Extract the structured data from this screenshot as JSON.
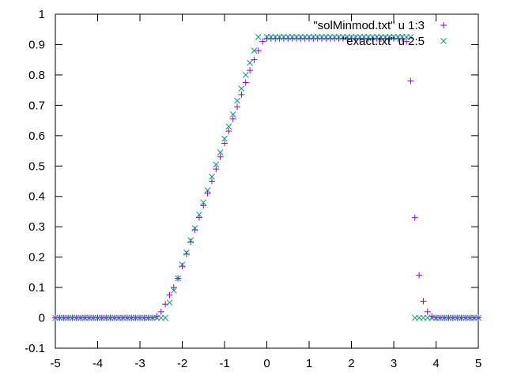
{
  "chart_data": {
    "type": "scatter",
    "xlim": [
      -5,
      5
    ],
    "ylim": [
      -0.1,
      1
    ],
    "xticks": [
      "-5",
      "-4",
      "-3",
      "-2",
      "-1",
      "0",
      "1",
      "2",
      "3",
      "4",
      "5"
    ],
    "yticks": [
      "-0.1",
      "0",
      "0.1",
      "0.2",
      "0.3",
      "0.4",
      "0.5",
      "0.6",
      "0.7",
      "0.8",
      "0.9",
      "1"
    ],
    "grid": false,
    "legend_position": "top-right",
    "series": [
      {
        "name": "\"solMinmod.txt\" u 1:3",
        "marker": "plus",
        "color": "#9400d3",
        "points": [
          [
            -5.0,
            0
          ],
          [
            -4.9,
            0
          ],
          [
            -4.8,
            0
          ],
          [
            -4.7,
            0
          ],
          [
            -4.6,
            0
          ],
          [
            -4.5,
            0
          ],
          [
            -4.4,
            0
          ],
          [
            -4.3,
            0
          ],
          [
            -4.2,
            0
          ],
          [
            -4.1,
            0
          ],
          [
            -4.0,
            0
          ],
          [
            -3.9,
            0
          ],
          [
            -3.8,
            0
          ],
          [
            -3.7,
            0
          ],
          [
            -3.6,
            0
          ],
          [
            -3.5,
            0
          ],
          [
            -3.4,
            0
          ],
          [
            -3.3,
            0
          ],
          [
            -3.2,
            0
          ],
          [
            -3.1,
            0
          ],
          [
            -3.0,
            0
          ],
          [
            -2.9,
            0
          ],
          [
            -2.8,
            0
          ],
          [
            -2.7,
            0
          ],
          [
            -2.6,
            0.005
          ],
          [
            -2.5,
            0.02
          ],
          [
            -2.4,
            0.045
          ],
          [
            -2.3,
            0.075
          ],
          [
            -2.2,
            0.1
          ],
          [
            -2.1,
            0.13
          ],
          [
            -2.0,
            0.17
          ],
          [
            -1.9,
            0.21
          ],
          [
            -1.8,
            0.25
          ],
          [
            -1.7,
            0.29
          ],
          [
            -1.6,
            0.33
          ],
          [
            -1.5,
            0.37
          ],
          [
            -1.4,
            0.41
          ],
          [
            -1.3,
            0.45
          ],
          [
            -1.2,
            0.49
          ],
          [
            -1.1,
            0.53
          ],
          [
            -1.0,
            0.575
          ],
          [
            -0.9,
            0.615
          ],
          [
            -0.8,
            0.655
          ],
          [
            -0.7,
            0.695
          ],
          [
            -0.6,
            0.735
          ],
          [
            -0.5,
            0.775
          ],
          [
            -0.4,
            0.815
          ],
          [
            -0.3,
            0.85
          ],
          [
            -0.2,
            0.88
          ],
          [
            -0.1,
            0.91
          ],
          [
            0.0,
            0.92
          ],
          [
            0.1,
            0.92
          ],
          [
            0.2,
            0.92
          ],
          [
            0.3,
            0.92
          ],
          [
            0.4,
            0.92
          ],
          [
            0.5,
            0.92
          ],
          [
            0.6,
            0.92
          ],
          [
            0.7,
            0.92
          ],
          [
            0.8,
            0.92
          ],
          [
            0.9,
            0.92
          ],
          [
            1.0,
            0.92
          ],
          [
            1.1,
            0.92
          ],
          [
            1.2,
            0.92
          ],
          [
            1.3,
            0.92
          ],
          [
            1.4,
            0.92
          ],
          [
            1.5,
            0.92
          ],
          [
            1.6,
            0.92
          ],
          [
            1.7,
            0.92
          ],
          [
            1.8,
            0.92
          ],
          [
            1.9,
            0.92
          ],
          [
            2.0,
            0.92
          ],
          [
            2.1,
            0.92
          ],
          [
            2.2,
            0.92
          ],
          [
            2.3,
            0.92
          ],
          [
            2.4,
            0.92
          ],
          [
            2.5,
            0.92
          ],
          [
            2.6,
            0.92
          ],
          [
            2.7,
            0.92
          ],
          [
            2.8,
            0.92
          ],
          [
            2.9,
            0.92
          ],
          [
            3.0,
            0.92
          ],
          [
            3.1,
            0.92
          ],
          [
            3.2,
            0.92
          ],
          [
            3.3,
            0.91
          ],
          [
            3.4,
            0.78
          ],
          [
            3.5,
            0.33
          ],
          [
            3.6,
            0.14
          ],
          [
            3.7,
            0.055
          ],
          [
            3.8,
            0.02
          ],
          [
            3.9,
            0.005
          ],
          [
            4.0,
            0
          ],
          [
            4.1,
            0
          ],
          [
            4.2,
            0
          ],
          [
            4.3,
            0
          ],
          [
            4.4,
            0
          ],
          [
            4.5,
            0
          ],
          [
            4.6,
            0
          ],
          [
            4.7,
            0
          ],
          [
            4.8,
            0
          ],
          [
            4.9,
            0
          ],
          [
            5.0,
            0
          ]
        ]
      },
      {
        "name": "\"exact.txt\" u 2:5",
        "marker": "cross",
        "color": "#009e73",
        "points": [
          [
            -5.0,
            0
          ],
          [
            -4.9,
            0
          ],
          [
            -4.8,
            0
          ],
          [
            -4.7,
            0
          ],
          [
            -4.6,
            0
          ],
          [
            -4.5,
            0
          ],
          [
            -4.4,
            0
          ],
          [
            -4.3,
            0
          ],
          [
            -4.2,
            0
          ],
          [
            -4.1,
            0
          ],
          [
            -4.0,
            0
          ],
          [
            -3.9,
            0
          ],
          [
            -3.8,
            0
          ],
          [
            -3.7,
            0
          ],
          [
            -3.6,
            0
          ],
          [
            -3.5,
            0
          ],
          [
            -3.4,
            0
          ],
          [
            -3.3,
            0
          ],
          [
            -3.2,
            0
          ],
          [
            -3.1,
            0
          ],
          [
            -3.0,
            0
          ],
          [
            -2.9,
            0
          ],
          [
            -2.8,
            0
          ],
          [
            -2.7,
            0
          ],
          [
            -2.6,
            0
          ],
          [
            -2.5,
            0
          ],
          [
            -2.4,
            0
          ],
          [
            -2.3,
            0.05
          ],
          [
            -2.2,
            0.09
          ],
          [
            -2.1,
            0.13
          ],
          [
            -2.0,
            0.175
          ],
          [
            -1.9,
            0.215
          ],
          [
            -1.8,
            0.255
          ],
          [
            -1.7,
            0.295
          ],
          [
            -1.6,
            0.34
          ],
          [
            -1.5,
            0.38
          ],
          [
            -1.4,
            0.42
          ],
          [
            -1.3,
            0.465
          ],
          [
            -1.2,
            0.505
          ],
          [
            -1.1,
            0.545
          ],
          [
            -1.0,
            0.59
          ],
          [
            -0.9,
            0.63
          ],
          [
            -0.8,
            0.67
          ],
          [
            -0.7,
            0.715
          ],
          [
            -0.6,
            0.755
          ],
          [
            -0.5,
            0.8
          ],
          [
            -0.4,
            0.84
          ],
          [
            -0.3,
            0.88
          ],
          [
            -0.2,
            0.925
          ],
          [
            0.0,
            0.925
          ],
          [
            0.1,
            0.925
          ],
          [
            0.2,
            0.925
          ],
          [
            0.3,
            0.925
          ],
          [
            0.4,
            0.925
          ],
          [
            0.5,
            0.925
          ],
          [
            0.6,
            0.925
          ],
          [
            0.7,
            0.925
          ],
          [
            0.8,
            0.925
          ],
          [
            0.9,
            0.925
          ],
          [
            1.0,
            0.925
          ],
          [
            1.1,
            0.925
          ],
          [
            1.2,
            0.925
          ],
          [
            1.3,
            0.925
          ],
          [
            1.4,
            0.925
          ],
          [
            1.5,
            0.925
          ],
          [
            1.6,
            0.925
          ],
          [
            1.7,
            0.925
          ],
          [
            1.8,
            0.925
          ],
          [
            1.9,
            0.925
          ],
          [
            2.0,
            0.925
          ],
          [
            2.1,
            0.925
          ],
          [
            2.2,
            0.925
          ],
          [
            2.3,
            0.925
          ],
          [
            2.4,
            0.925
          ],
          [
            2.5,
            0.925
          ],
          [
            2.6,
            0.925
          ],
          [
            2.7,
            0.925
          ],
          [
            2.8,
            0.925
          ],
          [
            2.9,
            0.925
          ],
          [
            3.0,
            0.925
          ],
          [
            3.1,
            0.925
          ],
          [
            3.2,
            0.925
          ],
          [
            3.3,
            0.925
          ],
          [
            3.4,
            0.925
          ],
          [
            3.5,
            0
          ],
          [
            3.6,
            0
          ],
          [
            3.7,
            0
          ],
          [
            3.8,
            0
          ],
          [
            3.9,
            0
          ],
          [
            4.0,
            0
          ],
          [
            4.1,
            0
          ],
          [
            4.2,
            0
          ],
          [
            4.3,
            0
          ],
          [
            4.4,
            0
          ],
          [
            4.5,
            0
          ],
          [
            4.6,
            0
          ],
          [
            4.7,
            0
          ],
          [
            4.8,
            0
          ],
          [
            4.9,
            0
          ],
          [
            5.0,
            0
          ]
        ]
      }
    ]
  }
}
